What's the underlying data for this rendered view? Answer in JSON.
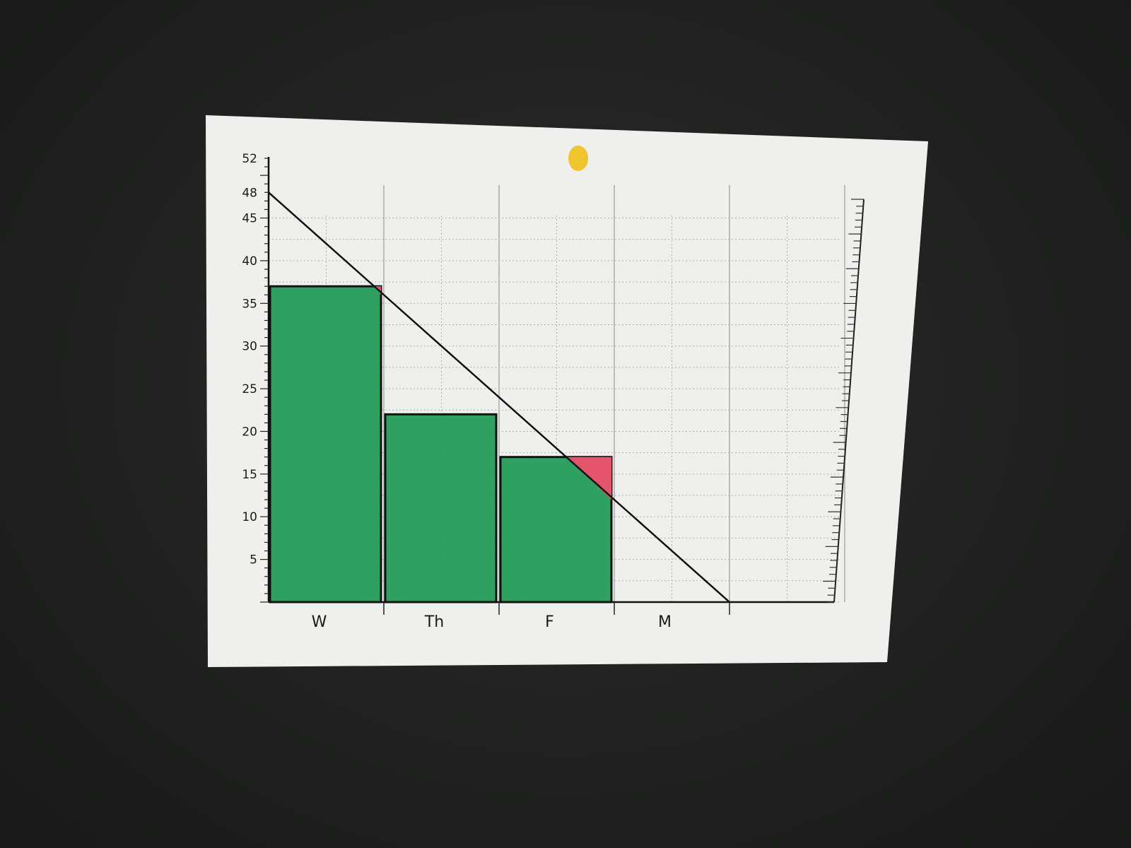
{
  "chart_data": {
    "type": "bar",
    "chart_kind": "burndown (hand-drawn on paper)",
    "categories": [
      "W",
      "Th",
      "F",
      "M"
    ],
    "values": [
      37,
      22,
      17,
      null
    ],
    "overshoot": [
      {
        "category": "W",
        "ideal_at_bar_end": 36,
        "bar_value": 37
      },
      {
        "category": "F",
        "ideal_at_bar_start": 17,
        "ideal_at_bar_end": 12,
        "bar_value": 17
      }
    ],
    "ideal_line": {
      "start": {
        "x": 0,
        "y": 48
      },
      "end": {
        "x": 4,
        "y": 0
      }
    },
    "y_ticks": [
      "5",
      "10",
      "15",
      "20",
      "25",
      "30",
      "35",
      "40",
      "45",
      "48",
      "52"
    ],
    "ylim": [
      0,
      52
    ],
    "title": "",
    "xlabel": "",
    "ylabel": "",
    "grid": true,
    "colors": {
      "bars": "#1f9a55",
      "overshoot": "#e3546a",
      "ideal_line": "#111111",
      "paper": "#f1f2f0",
      "pin": "#f0c62c"
    }
  }
}
